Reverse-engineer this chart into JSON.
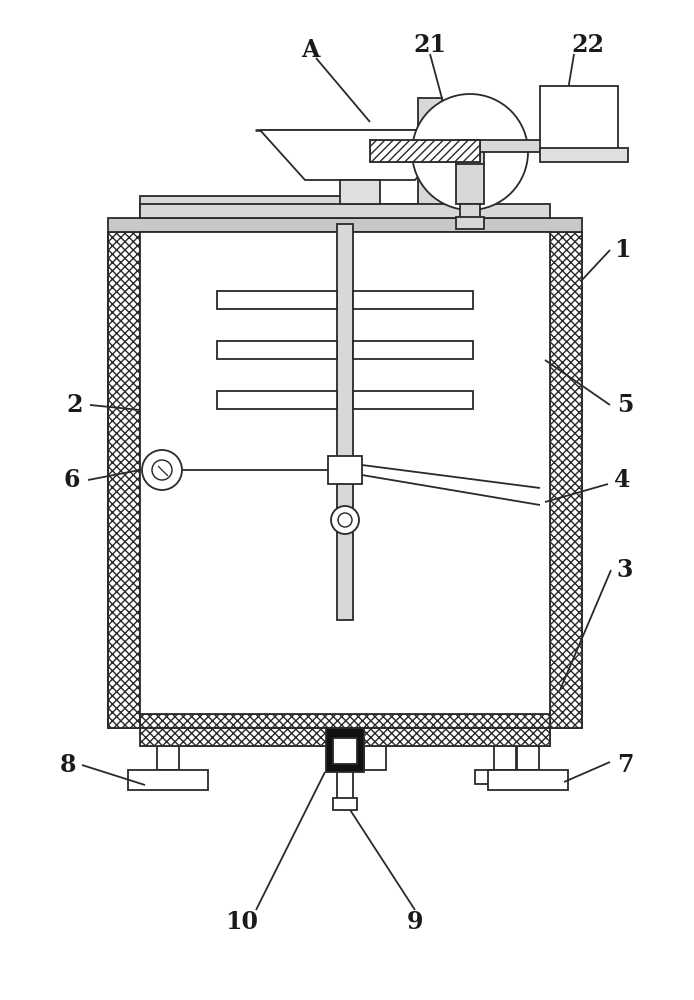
{
  "bg_color": "#ffffff",
  "line_color": "#2a2a2a",
  "label_color": "#1a1a1a",
  "figsize": [
    6.94,
    10.0
  ],
  "dpi": 100
}
